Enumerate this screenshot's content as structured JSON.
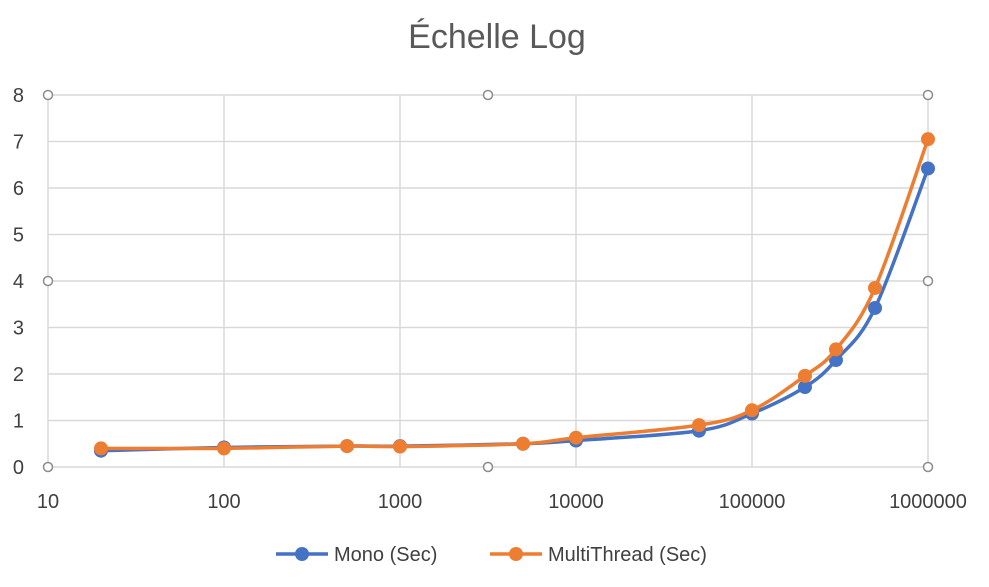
{
  "chart_data": {
    "type": "line",
    "title": "Échelle Log",
    "xlabel": "",
    "ylabel": "",
    "x_scale": "log",
    "xlim": [
      10,
      1000000
    ],
    "ylim": [
      0,
      8
    ],
    "x_ticks": [
      "10",
      "100",
      "1000",
      "10000",
      "100000",
      "1000000"
    ],
    "y_ticks": [
      "0",
      "1",
      "2",
      "3",
      "4",
      "5",
      "6",
      "7",
      "8"
    ],
    "grid": true,
    "legend_position": "bottom",
    "x": [
      20,
      100,
      500,
      1000,
      5000,
      10000,
      50000,
      100000,
      200000,
      300000,
      500000,
      1000000
    ],
    "series": [
      {
        "name": "Mono (Sec)",
        "color": "#4472c4",
        "values": [
          0.35,
          0.42,
          0.45,
          0.45,
          0.5,
          0.57,
          0.78,
          1.15,
          1.72,
          2.3,
          3.42,
          6.42
        ]
      },
      {
        "name": "MultiThread (Sec)",
        "color": "#ed7d31",
        "values": [
          0.4,
          0.4,
          0.45,
          0.44,
          0.5,
          0.63,
          0.9,
          1.22,
          1.96,
          2.53,
          3.85,
          7.05
        ]
      }
    ]
  }
}
